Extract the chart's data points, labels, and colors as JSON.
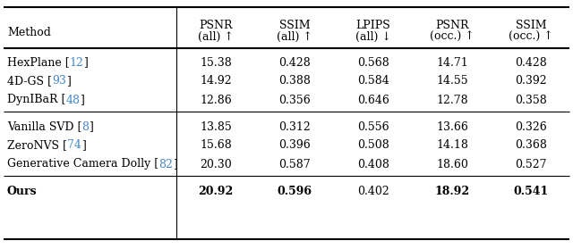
{
  "headers_line1": [
    "Method",
    "PSNR",
    "SSIM",
    "LPIPS",
    "PSNR",
    "SSIM"
  ],
  "headers_line2": [
    "",
    "(all) ↑",
    "(all) ↑",
    "(all) ↓",
    "(occ.) ↑",
    "(occ.) ↑"
  ],
  "rows": [
    {
      "group": 1,
      "method": "HexPlane",
      "ref": "12",
      "values": [
        "15.38",
        "0.428",
        "0.568",
        "14.71",
        "0.428"
      ],
      "bold": [
        false,
        false,
        false,
        false,
        false
      ]
    },
    {
      "group": 1,
      "method": "4D-GS",
      "ref": "93",
      "values": [
        "14.92",
        "0.388",
        "0.584",
        "14.55",
        "0.392"
      ],
      "bold": [
        false,
        false,
        false,
        false,
        false
      ]
    },
    {
      "group": 1,
      "method": "DynIBaR",
      "ref": "48",
      "values": [
        "12.86",
        "0.356",
        "0.646",
        "12.78",
        "0.358"
      ],
      "bold": [
        false,
        false,
        false,
        false,
        false
      ]
    },
    {
      "group": 2,
      "method": "Vanilla SVD",
      "ref": "8",
      "values": [
        "13.85",
        "0.312",
        "0.556",
        "13.66",
        "0.326"
      ],
      "bold": [
        false,
        false,
        false,
        false,
        false
      ]
    },
    {
      "group": 2,
      "method": "ZeroNVS",
      "ref": "74",
      "values": [
        "15.68",
        "0.396",
        "0.508",
        "14.18",
        "0.368"
      ],
      "bold": [
        false,
        false,
        false,
        false,
        false
      ]
    },
    {
      "group": 2,
      "method": "Generative Camera Dolly",
      "ref": "82",
      "values": [
        "20.30",
        "0.587",
        "0.408",
        "18.60",
        "0.527"
      ],
      "bold": [
        false,
        false,
        false,
        false,
        false
      ]
    },
    {
      "group": 3,
      "method": "Ours",
      "ref": "",
      "values": [
        "20.92",
        "0.596",
        "0.402",
        "18.92",
        "0.541"
      ],
      "bold": [
        true,
        true,
        false,
        true,
        true
      ]
    }
  ],
  "ref_color": "#4488cc",
  "bg_color": "#ffffff",
  "font_size": 9.0
}
